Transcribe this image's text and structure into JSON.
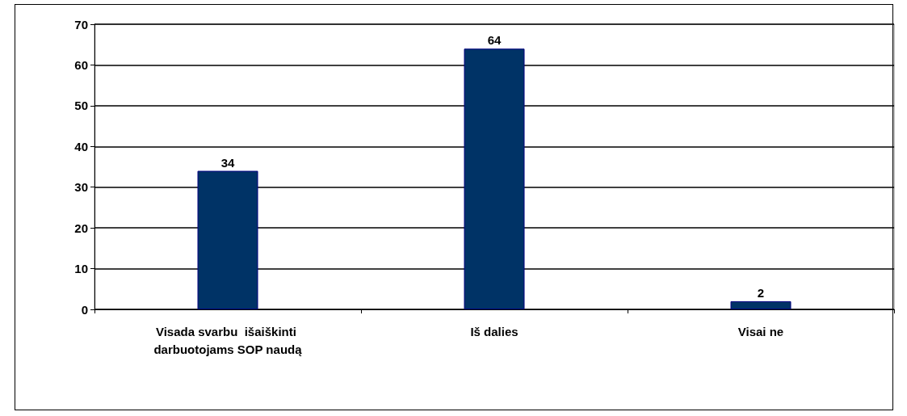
{
  "chart_data": {
    "type": "bar",
    "categories": [
      "Visada svarbu  išaiškinti darbuotojams SOP naudą",
      "Iš dalies",
      "Visai ne"
    ],
    "values": [
      34,
      64,
      2
    ],
    "color": "#003366",
    "ylim": [
      0,
      70
    ],
    "yticks": [
      0,
      10,
      20,
      30,
      40,
      50,
      60,
      70
    ],
    "grid": "y",
    "data_labels": true
  }
}
